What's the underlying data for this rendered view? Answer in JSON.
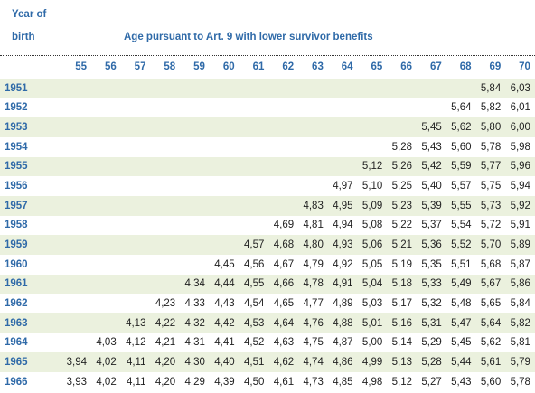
{
  "header": {
    "year_label": [
      "Year of",
      "birth"
    ],
    "title": "Age pursuant to Art. 9 with lower survivor benefits"
  },
  "table": {
    "columns": [
      55,
      56,
      57,
      58,
      59,
      60,
      61,
      62,
      63,
      64,
      65,
      66,
      67,
      68,
      69,
      70
    ],
    "rows": [
      {
        "year": 1951,
        "cells": [
          null,
          null,
          null,
          null,
          null,
          null,
          null,
          null,
          null,
          null,
          null,
          null,
          null,
          null,
          "5,84",
          "6,03"
        ]
      },
      {
        "year": 1952,
        "cells": [
          null,
          null,
          null,
          null,
          null,
          null,
          null,
          null,
          null,
          null,
          null,
          null,
          null,
          "5,64",
          "5,82",
          "6,01"
        ]
      },
      {
        "year": 1953,
        "cells": [
          null,
          null,
          null,
          null,
          null,
          null,
          null,
          null,
          null,
          null,
          null,
          null,
          "5,45",
          "5,62",
          "5,80",
          "6,00"
        ]
      },
      {
        "year": 1954,
        "cells": [
          null,
          null,
          null,
          null,
          null,
          null,
          null,
          null,
          null,
          null,
          null,
          "5,28",
          "5,43",
          "5,60",
          "5,78",
          "5,98"
        ]
      },
      {
        "year": 1955,
        "cells": [
          null,
          null,
          null,
          null,
          null,
          null,
          null,
          null,
          null,
          null,
          "5,12",
          "5,26",
          "5,42",
          "5,59",
          "5,77",
          "5,96"
        ]
      },
      {
        "year": 1956,
        "cells": [
          null,
          null,
          null,
          null,
          null,
          null,
          null,
          null,
          null,
          "4,97",
          "5,10",
          "5,25",
          "5,40",
          "5,57",
          "5,75",
          "5,94"
        ]
      },
      {
        "year": 1957,
        "cells": [
          null,
          null,
          null,
          null,
          null,
          null,
          null,
          null,
          "4,83",
          "4,95",
          "5,09",
          "5,23",
          "5,39",
          "5,55",
          "5,73",
          "5,92"
        ]
      },
      {
        "year": 1958,
        "cells": [
          null,
          null,
          null,
          null,
          null,
          null,
          null,
          "4,69",
          "4,81",
          "4,94",
          "5,08",
          "5,22",
          "5,37",
          "5,54",
          "5,72",
          "5,91"
        ]
      },
      {
        "year": 1959,
        "cells": [
          null,
          null,
          null,
          null,
          null,
          null,
          "4,57",
          "4,68",
          "4,80",
          "4,93",
          "5,06",
          "5,21",
          "5,36",
          "5,52",
          "5,70",
          "5,89"
        ]
      },
      {
        "year": 1960,
        "cells": [
          null,
          null,
          null,
          null,
          null,
          "4,45",
          "4,56",
          "4,67",
          "4,79",
          "4,92",
          "5,05",
          "5,19",
          "5,35",
          "5,51",
          "5,68",
          "5,87"
        ]
      },
      {
        "year": 1961,
        "cells": [
          null,
          null,
          null,
          null,
          "4,34",
          "4,44",
          "4,55",
          "4,66",
          "4,78",
          "4,91",
          "5,04",
          "5,18",
          "5,33",
          "5,49",
          "5,67",
          "5,86"
        ]
      },
      {
        "year": 1962,
        "cells": [
          null,
          null,
          null,
          "4,23",
          "4,33",
          "4,43",
          "4,54",
          "4,65",
          "4,77",
          "4,89",
          "5,03",
          "5,17",
          "5,32",
          "5,48",
          "5,65",
          "5,84"
        ]
      },
      {
        "year": 1963,
        "cells": [
          null,
          null,
          "4,13",
          "4,22",
          "4,32",
          "4,42",
          "4,53",
          "4,64",
          "4,76",
          "4,88",
          "5,01",
          "5,16",
          "5,31",
          "5,47",
          "5,64",
          "5,82"
        ]
      },
      {
        "year": 1964,
        "cells": [
          null,
          "4,03",
          "4,12",
          "4,21",
          "4,31",
          "4,41",
          "4,52",
          "4,63",
          "4,75",
          "4,87",
          "5,00",
          "5,14",
          "5,29",
          "5,45",
          "5,62",
          "5,81"
        ]
      },
      {
        "year": 1965,
        "cells": [
          "3,94",
          "4,02",
          "4,11",
          "4,20",
          "4,30",
          "4,40",
          "4,51",
          "4,62",
          "4,74",
          "4,86",
          "4,99",
          "5,13",
          "5,28",
          "5,44",
          "5,61",
          "5,79"
        ]
      },
      {
        "year": 1966,
        "cells": [
          "3,93",
          "4,02",
          "4,11",
          "4,20",
          "4,29",
          "4,39",
          "4,50",
          "4,61",
          "4,73",
          "4,85",
          "4,98",
          "5,12",
          "5,27",
          "5,43",
          "5,60",
          "5,78"
        ]
      }
    ]
  }
}
